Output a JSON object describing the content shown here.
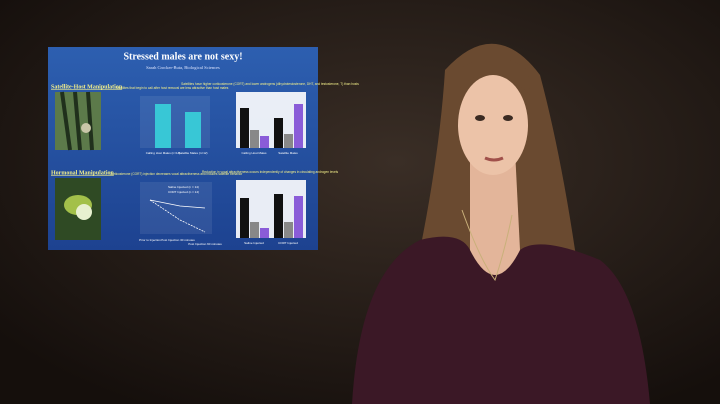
{
  "slide": {
    "title": "Stressed males are not sexy!",
    "author": "Sarah Crocker-Buta, Biological Sciences",
    "sections": [
      {
        "heading": "Satellite-Host Manipulation"
      },
      {
        "heading": "Hormonal Manipulation"
      }
    ],
    "panels": [
      {
        "caption": "Satellites that begin to call after host removal are less attractive than host males",
        "labels": [
          "Calling Host Males (n=14)",
          "Satellite Males (n=12)"
        ]
      },
      {
        "caption": "Satellites have higher corticosterone (CORT) and lower androgens (dihydrotestosterone, DHT, and testosterone, T) than hosts",
        "labels": [
          "Calling Host Males",
          "Satellite Males"
        ]
      },
      {
        "caption": "Corticosterone (CORT) injection decreases vocal attractiveness and induces satellite behavior",
        "labels": [
          "Prior to Injection",
          "Post Injection 30 minutes",
          "Post Injection 60 minutes"
        ],
        "legend": [
          "Saline Injected (n = 14)",
          "CORT Injected (n = 14)"
        ]
      },
      {
        "caption": "Reduction in vocal attractiveness occurs independently of changes in circulating androgen levels",
        "labels": [
          "Saline Injected",
          "CORT Injected"
        ]
      }
    ]
  }
}
